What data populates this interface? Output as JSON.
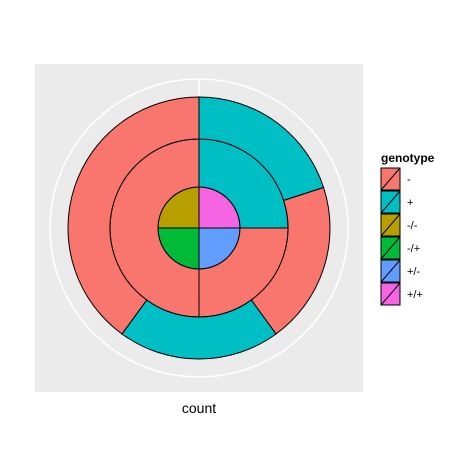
{
  "chart_data": {
    "type": "pie",
    "subtype": "nested-donut",
    "xlabel": "count",
    "ylabel": "",
    "grid": true,
    "legend_position": "right",
    "legend": {
      "title": "genotype",
      "entries": [
        {
          "label": "-",
          "color": "#F8766D"
        },
        {
          "label": "+",
          "color": "#00BFC4"
        },
        {
          "label": "-/-",
          "color": "#B79F00"
        },
        {
          "label": "-/+",
          "color": "#00BA38"
        },
        {
          "label": "+/-",
          "color": "#619CFF"
        },
        {
          "label": "+/+",
          "color": "#F564E3"
        }
      ]
    },
    "rings": [
      {
        "name": "inner",
        "slices": [
          {
            "label": "+/+",
            "value": 1,
            "color": "#F564E3"
          },
          {
            "label": "+/-",
            "value": 1,
            "color": "#619CFF"
          },
          {
            "label": "-/+",
            "value": 1,
            "color": "#00BA38"
          },
          {
            "label": "-/-",
            "value": 1,
            "color": "#B79F00"
          }
        ]
      },
      {
        "name": "middle",
        "slices": [
          {
            "label": "+",
            "value": 1,
            "color": "#00BFC4"
          },
          {
            "label": "-",
            "value": 1,
            "color": "#F8766D"
          },
          {
            "label": "-",
            "value": 2,
            "color": "#F8766D"
          }
        ]
      },
      {
        "name": "outer",
        "slices": [
          {
            "label": "+",
            "value": 1,
            "color": "#00BFC4"
          },
          {
            "label": "-",
            "value": 1,
            "color": "#F8766D"
          },
          {
            "label": "+",
            "value": 1,
            "color": "#00BFC4"
          },
          {
            "label": "-",
            "value": 2,
            "color": "#F8766D"
          }
        ]
      }
    ]
  }
}
